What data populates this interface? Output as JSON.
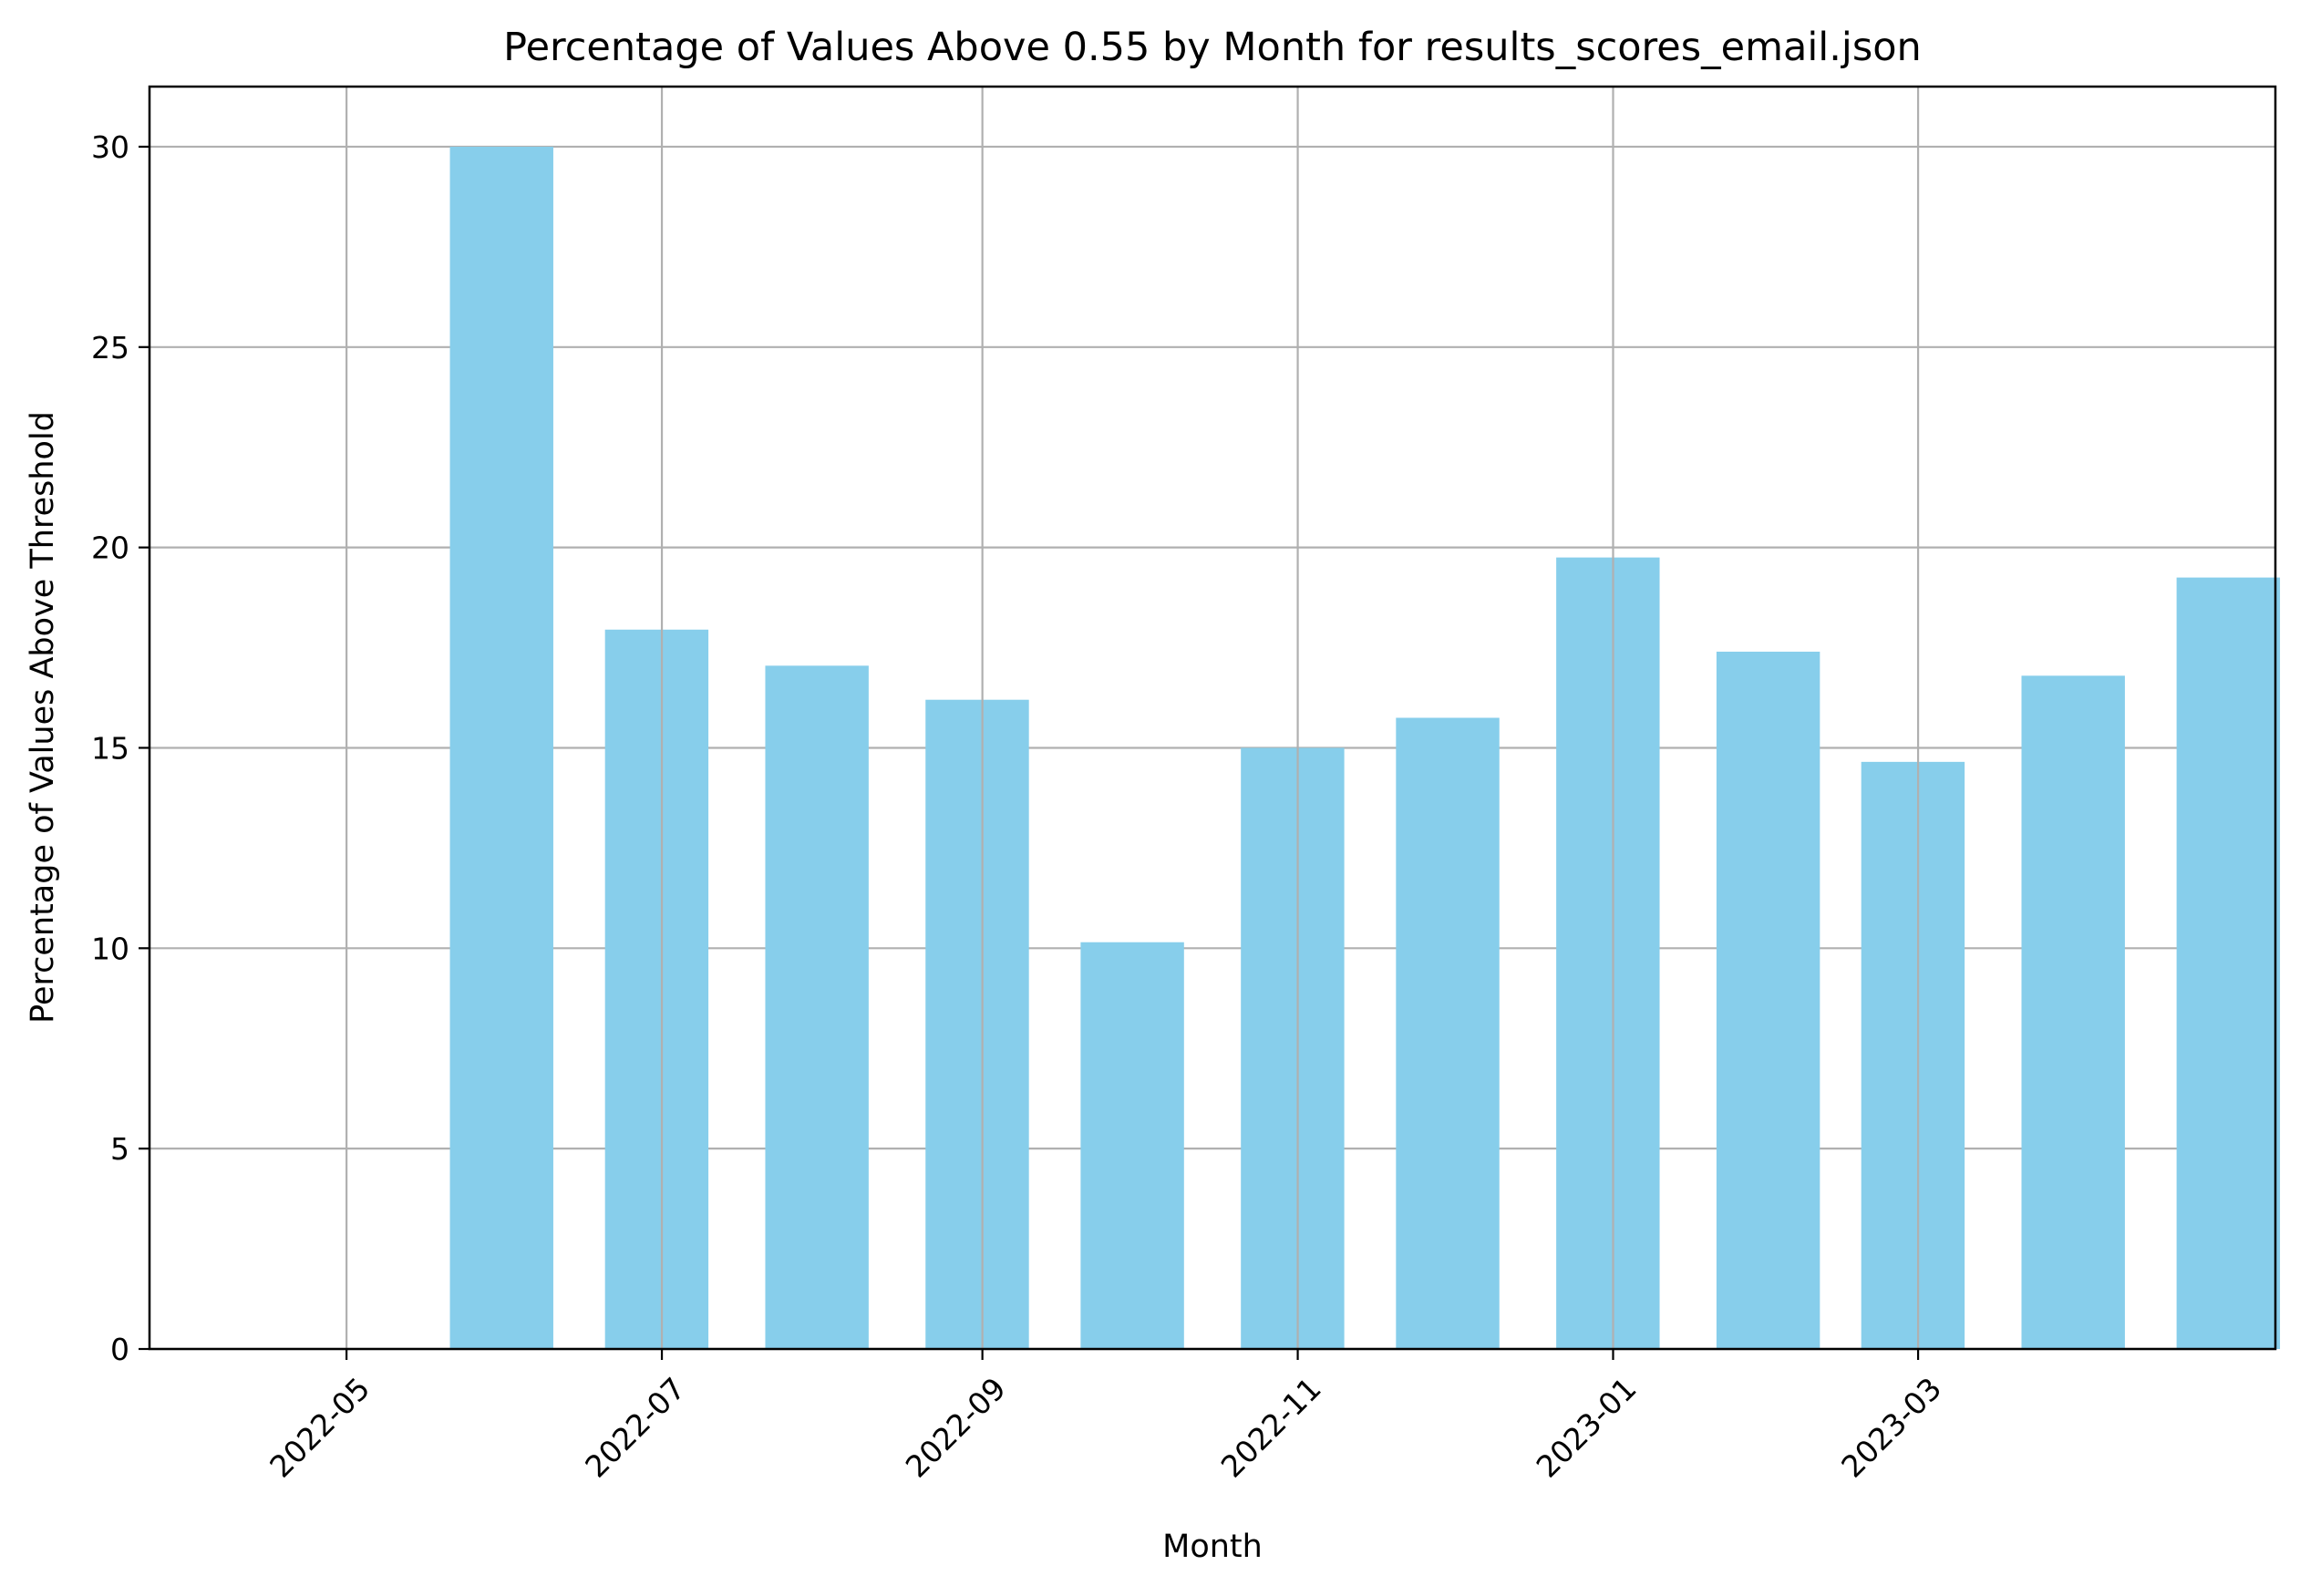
{
  "chart_data": {
    "type": "bar",
    "title": "Percentage of Values Above 0.55 by Month for results_scores_email.json",
    "xlabel": "Month",
    "ylabel": "Percentage of Values Above Threshold",
    "categories": [
      "2022-05",
      "2022-06",
      "2022-07",
      "2022-08",
      "2022-09",
      "2022-10",
      "2022-11",
      "2022-12",
      "2023-01",
      "2023-02",
      "2023-03",
      "2023-04"
    ],
    "values": [
      30.0,
      17.95,
      17.05,
      16.2,
      10.15,
      15.0,
      15.75,
      19.75,
      17.4,
      14.65,
      16.8,
      19.25
    ],
    "x_tick_labels": [
      "2022-05",
      "2022-07",
      "2022-09",
      "2022-11",
      "2023-01",
      "2023-03"
    ],
    "y_tick_labels": [
      "0",
      "5",
      "10",
      "15",
      "20",
      "25",
      "30"
    ],
    "ylim": [
      0,
      31.5
    ],
    "grid": true,
    "legend": "none",
    "bar_color": "#87ceeb"
  }
}
